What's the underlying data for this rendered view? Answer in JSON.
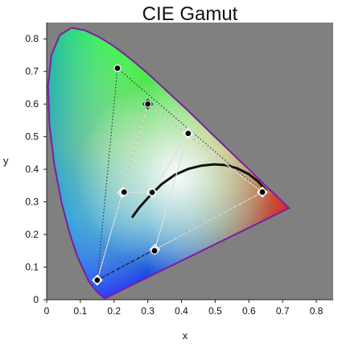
{
  "chart_data": {
    "type": "scatter",
    "title": "CIE Gamut",
    "xlabel": "x",
    "ylabel": "y",
    "xlim": [
      0,
      0.85
    ],
    "ylim": [
      0,
      0.85
    ],
    "grid": false,
    "plot_background": "#808080",
    "x_ticks": [
      "0",
      "0.1",
      "0.2",
      "0.3",
      "0.4",
      "0.5",
      "0.6",
      "0.7",
      "0.8"
    ],
    "y_ticks": [
      "0",
      "0.1",
      "0.2",
      "0.3",
      "0.4",
      "0.5",
      "0.6",
      "0.7",
      "0.8"
    ],
    "spectral_locus": {
      "color": "#7a1fa0",
      "points": [
        [
          0.174,
          0.005
        ],
        [
          0.172,
          0.005
        ],
        [
          0.17,
          0.005
        ],
        [
          0.166,
          0.009
        ],
        [
          0.161,
          0.014
        ],
        [
          0.151,
          0.023
        ],
        [
          0.144,
          0.03
        ],
        [
          0.124,
          0.058
        ],
        [
          0.091,
          0.133
        ],
        [
          0.069,
          0.201
        ],
        [
          0.045,
          0.295
        ],
        [
          0.023,
          0.413
        ],
        [
          0.008,
          0.538
        ],
        [
          0.004,
          0.655
        ],
        [
          0.014,
          0.75
        ],
        [
          0.039,
          0.812
        ],
        [
          0.074,
          0.834
        ],
        [
          0.114,
          0.826
        ],
        [
          0.155,
          0.806
        ],
        [
          0.193,
          0.782
        ],
        [
          0.23,
          0.754
        ],
        [
          0.266,
          0.724
        ],
        [
          0.302,
          0.692
        ],
        [
          0.337,
          0.659
        ],
        [
          0.373,
          0.624
        ],
        [
          0.409,
          0.59
        ],
        [
          0.444,
          0.555
        ],
        [
          0.479,
          0.52
        ],
        [
          0.512,
          0.487
        ],
        [
          0.545,
          0.454
        ],
        [
          0.575,
          0.424
        ],
        [
          0.603,
          0.397
        ],
        [
          0.627,
          0.372
        ],
        [
          0.648,
          0.351
        ],
        [
          0.666,
          0.334
        ],
        [
          0.68,
          0.32
        ],
        [
          0.691,
          0.309
        ],
        [
          0.7,
          0.3
        ],
        [
          0.706,
          0.294
        ],
        [
          0.711,
          0.289
        ],
        [
          0.714,
          0.286
        ],
        [
          0.717,
          0.283
        ],
        [
          0.719,
          0.281
        ]
      ]
    },
    "planckian_locus": {
      "color": "#111111",
      "points": [
        [
          0.253,
          0.252
        ],
        [
          0.275,
          0.283
        ],
        [
          0.302,
          0.314
        ],
        [
          0.341,
          0.354
        ],
        [
          0.38,
          0.383
        ],
        [
          0.42,
          0.401
        ],
        [
          0.458,
          0.411
        ],
        [
          0.497,
          0.415
        ],
        [
          0.53,
          0.413
        ],
        [
          0.565,
          0.403
        ],
        [
          0.6,
          0.385
        ],
        [
          0.628,
          0.362
        ],
        [
          0.652,
          0.333
        ]
      ]
    },
    "series": [
      {
        "marker": "circle",
        "marker_color": "#000000",
        "line_style": "dashed",
        "line_color": "#111111",
        "points": [
          [
            0.64,
            0.33
          ],
          [
            0.3,
            0.6
          ],
          [
            0.15,
            0.06
          ]
        ]
      },
      {
        "marker": "circle",
        "marker_color": "#000000",
        "line_style": "dotted",
        "line_color": "#333333",
        "points": [
          [
            0.64,
            0.33
          ],
          [
            0.21,
            0.71
          ],
          [
            0.15,
            0.06
          ]
        ]
      },
      {
        "marker": "circle",
        "marker_color": "#000000",
        "line_style": "none",
        "points": [
          [
            0.23,
            0.33
          ],
          [
            0.31,
            0.33
          ],
          [
            0.42,
            0.51
          ],
          [
            0.32,
            0.15
          ],
          [
            0.313,
            0.329
          ]
        ]
      },
      {
        "marker": "diamond",
        "marker_color": "#f5f5f5",
        "line_style": "solid",
        "line_color": "#dddddd",
        "points": [
          [
            0.64,
            0.33
          ],
          [
            0.3,
            0.6
          ],
          [
            0.15,
            0.06
          ],
          [
            0.225,
            0.329
          ],
          [
            0.313,
            0.329
          ],
          [
            0.42,
            0.51
          ],
          [
            0.321,
            0.154
          ],
          [
            0.64,
            0.33
          ]
        ]
      },
      {
        "marker": "diamond",
        "marker_color": "#1a6b1a",
        "line_style": "none",
        "points": [
          [
            0.3,
            0.6
          ]
        ]
      }
    ]
  }
}
